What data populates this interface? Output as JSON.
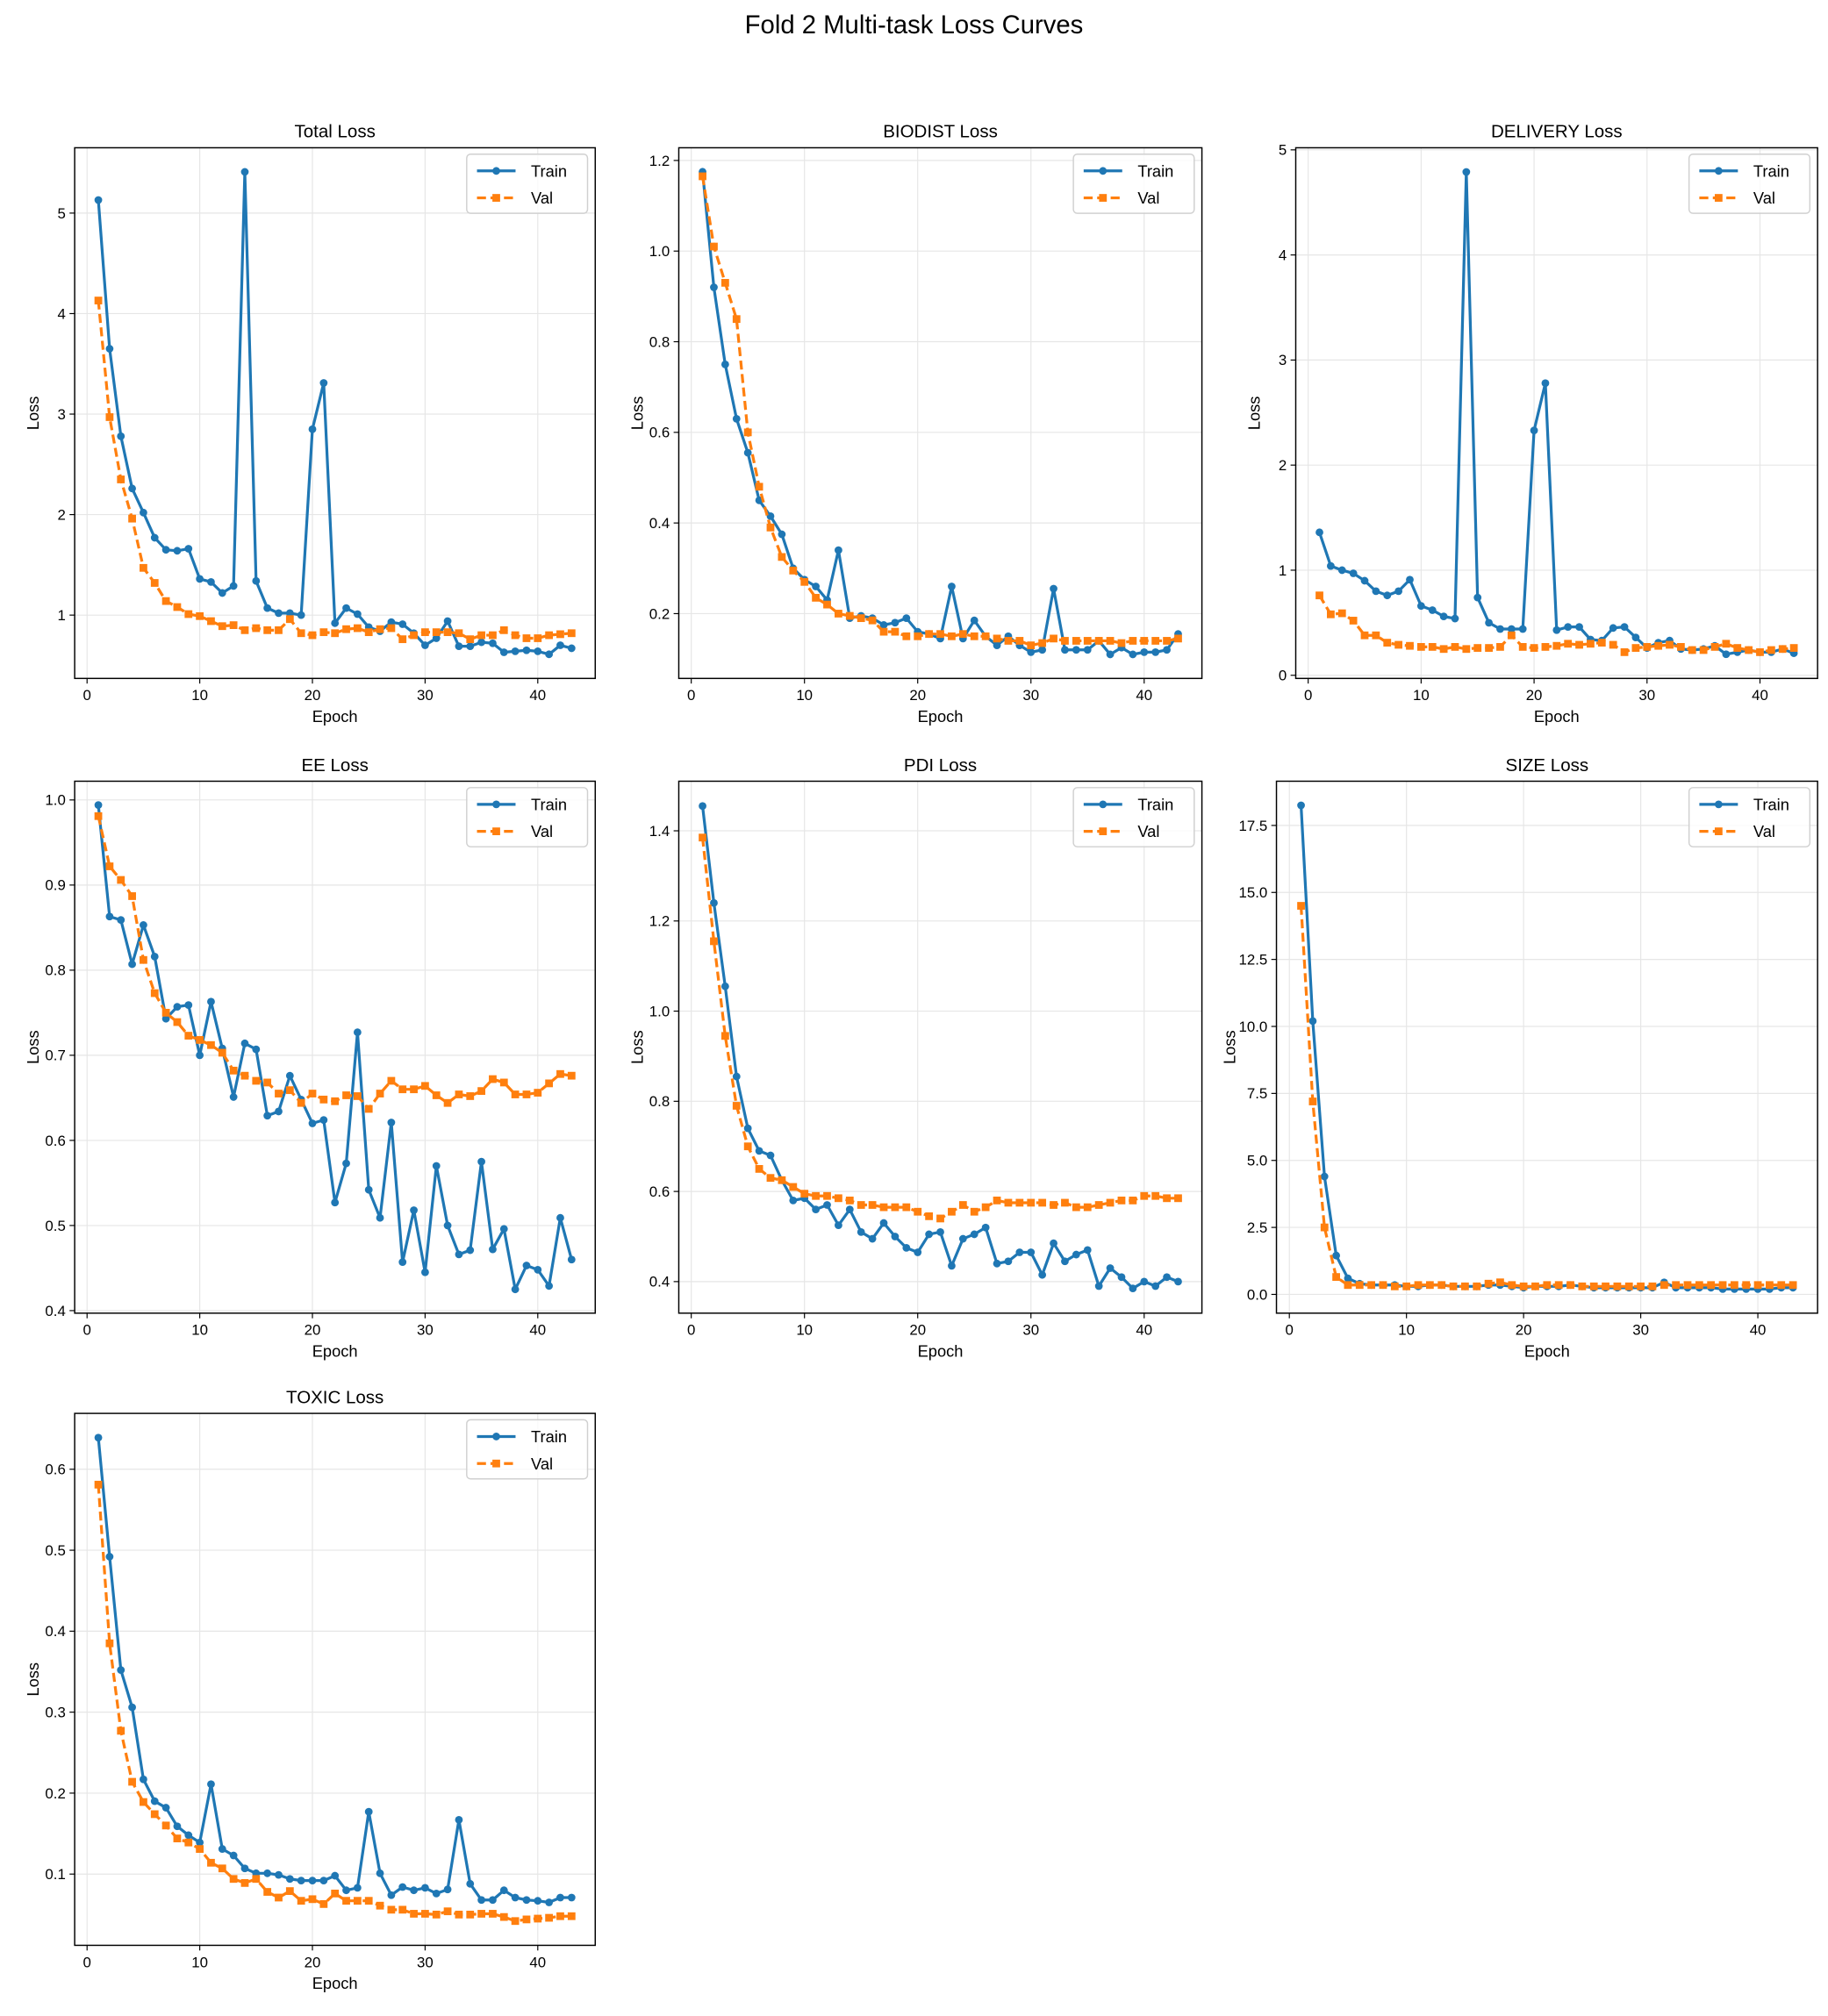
{
  "figure_title": "Fold 2 Multi-task Loss Curves",
  "colors": {
    "train": "#1f77b4",
    "val": "#ff7f0e"
  },
  "chart_data": [
    {
      "type": "line",
      "title": "Total Loss",
      "xlabel": "Epoch",
      "ylabel": "Loss",
      "xlim": [
        -1.1,
        45.1
      ],
      "ylim": [
        0.37,
        5.65
      ],
      "xticks": [
        0,
        10,
        20,
        30,
        40
      ],
      "yticks": [
        1,
        2,
        3,
        4,
        5
      ],
      "grid": true,
      "legend": "top-right",
      "series": [
        {
          "name": "Train",
          "values": [
            5.13,
            3.65,
            2.78,
            2.26,
            2.02,
            1.77,
            1.65,
            1.64,
            1.66,
            1.36,
            1.33,
            1.22,
            1.29,
            5.41,
            1.34,
            1.07,
            1.02,
            1.02,
            1.0,
            2.85,
            3.31,
            0.92,
            1.07,
            1.01,
            0.88,
            0.84,
            0.93,
            0.91,
            0.82,
            0.7,
            0.77,
            0.94,
            0.69,
            0.69,
            0.73,
            0.72,
            0.63,
            0.64,
            0.65,
            0.64,
            0.61,
            0.7,
            0.67
          ]
        },
        {
          "name": "Val",
          "values": [
            4.13,
            2.97,
            2.35,
            1.96,
            1.47,
            1.32,
            1.14,
            1.08,
            1.01,
            0.99,
            0.94,
            0.89,
            0.9,
            0.85,
            0.87,
            0.85,
            0.85,
            0.96,
            0.82,
            0.8,
            0.83,
            0.82,
            0.86,
            0.87,
            0.83,
            0.86,
            0.87,
            0.76,
            0.8,
            0.83,
            0.83,
            0.83,
            0.82,
            0.76,
            0.8,
            0.8,
            0.85,
            0.8,
            0.77,
            0.77,
            0.8,
            0.81,
            0.82
          ]
        }
      ]
    },
    {
      "type": "line",
      "title": "BIODIST Loss",
      "xlabel": "Epoch",
      "ylabel": "Loss",
      "xlim": [
        -1.1,
        45.1
      ],
      "ylim": [
        0.057,
        1.228
      ],
      "xticks": [
        0,
        10,
        20,
        30,
        40
      ],
      "yticks": [
        0.2,
        0.4,
        0.6,
        0.8,
        1.0,
        1.2
      ],
      "grid": true,
      "legend": "top-right",
      "series": [
        {
          "name": "Train",
          "values": [
            1.175,
            0.92,
            0.75,
            0.63,
            0.555,
            0.45,
            0.415,
            0.375,
            0.3,
            0.275,
            0.26,
            0.23,
            0.34,
            0.19,
            0.195,
            0.19,
            0.175,
            0.18,
            0.19,
            0.16,
            0.155,
            0.145,
            0.26,
            0.145,
            0.185,
            0.15,
            0.13,
            0.15,
            0.13,
            0.115,
            0.12,
            0.255,
            0.12,
            0.12,
            0.12,
            0.14,
            0.11,
            0.125,
            0.11,
            0.115,
            0.115,
            0.12,
            0.155
          ]
        },
        {
          "name": "Val",
          "values": [
            1.165,
            1.01,
            0.93,
            0.85,
            0.6,
            0.48,
            0.39,
            0.325,
            0.295,
            0.27,
            0.235,
            0.22,
            0.2,
            0.195,
            0.19,
            0.185,
            0.16,
            0.16,
            0.15,
            0.15,
            0.155,
            0.155,
            0.15,
            0.155,
            0.15,
            0.15,
            0.145,
            0.14,
            0.14,
            0.13,
            0.135,
            0.145,
            0.14,
            0.14,
            0.14,
            0.14,
            0.14,
            0.135,
            0.14,
            0.14,
            0.14,
            0.14,
            0.145
          ]
        }
      ]
    },
    {
      "type": "line",
      "title": "DELIVERY Loss",
      "xlabel": "Epoch",
      "ylabel": "Loss",
      "xlim": [
        -1.1,
        45.1
      ],
      "ylim": [
        -0.03,
        5.02
      ],
      "xticks": [
        0,
        10,
        20,
        30,
        40
      ],
      "yticks": [
        0,
        1,
        2,
        3,
        4,
        5
      ],
      "grid": true,
      "legend": "top-right",
      "series": [
        {
          "name": "Train",
          "values": [
            1.36,
            1.04,
            1.0,
            0.97,
            0.9,
            0.8,
            0.76,
            0.8,
            0.91,
            0.66,
            0.62,
            0.56,
            0.54,
            4.79,
            0.74,
            0.5,
            0.44,
            0.44,
            0.44,
            2.33,
            2.78,
            0.43,
            0.46,
            0.46,
            0.34,
            0.33,
            0.45,
            0.46,
            0.36,
            0.26,
            0.31,
            0.33,
            0.25,
            0.24,
            0.25,
            0.28,
            0.2,
            0.22,
            0.24,
            0.22,
            0.22,
            0.25,
            0.21
          ]
        },
        {
          "name": "Val",
          "values": [
            0.76,
            0.58,
            0.59,
            0.52,
            0.38,
            0.38,
            0.31,
            0.29,
            0.28,
            0.27,
            0.27,
            0.25,
            0.27,
            0.25,
            0.26,
            0.26,
            0.27,
            0.38,
            0.27,
            0.26,
            0.27,
            0.28,
            0.3,
            0.29,
            0.3,
            0.31,
            0.29,
            0.22,
            0.26,
            0.27,
            0.28,
            0.29,
            0.27,
            0.24,
            0.24,
            0.27,
            0.3,
            0.26,
            0.24,
            0.22,
            0.24,
            0.25,
            0.26
          ]
        }
      ]
    },
    {
      "type": "line",
      "title": "EE Loss",
      "xlabel": "Epoch",
      "ylabel": "Loss",
      "xlim": [
        -1.1,
        45.1
      ],
      "ylim": [
        0.397,
        1.022
      ],
      "xticks": [
        0,
        10,
        20,
        30,
        40
      ],
      "yticks": [
        0.4,
        0.5,
        0.6,
        0.7,
        0.8,
        0.9,
        1.0
      ],
      "grid": true,
      "legend": "top-right",
      "series": [
        {
          "name": "Train",
          "values": [
            0.994,
            0.863,
            0.859,
            0.807,
            0.853,
            0.816,
            0.743,
            0.757,
            0.759,
            0.7,
            0.763,
            0.708,
            0.651,
            0.714,
            0.707,
            0.629,
            0.634,
            0.676,
            0.648,
            0.62,
            0.624,
            0.527,
            0.573,
            0.727,
            0.542,
            0.509,
            0.621,
            0.457,
            0.518,
            0.445,
            0.57,
            0.5,
            0.466,
            0.471,
            0.575,
            0.472,
            0.496,
            0.425,
            0.453,
            0.448,
            0.429,
            0.509,
            0.46
          ]
        },
        {
          "name": "Val",
          "values": [
            0.981,
            0.922,
            0.906,
            0.887,
            0.812,
            0.773,
            0.75,
            0.739,
            0.723,
            0.718,
            0.712,
            0.703,
            0.682,
            0.676,
            0.67,
            0.668,
            0.655,
            0.659,
            0.644,
            0.655,
            0.648,
            0.646,
            0.653,
            0.652,
            0.637,
            0.655,
            0.67,
            0.66,
            0.66,
            0.664,
            0.653,
            0.644,
            0.654,
            0.652,
            0.658,
            0.672,
            0.668,
            0.654,
            0.654,
            0.656,
            0.667,
            0.678,
            0.676
          ]
        }
      ]
    },
    {
      "type": "line",
      "title": "PDI Loss",
      "xlabel": "Epoch",
      "ylabel": "Loss",
      "xlim": [
        -1.1,
        45.1
      ],
      "ylim": [
        0.33,
        1.51
      ],
      "xticks": [
        0,
        10,
        20,
        30,
        40
      ],
      "yticks": [
        0.4,
        0.6,
        0.8,
        1.0,
        1.2,
        1.4
      ],
      "grid": true,
      "legend": "top-right",
      "series": [
        {
          "name": "Train",
          "values": [
            1.455,
            1.24,
            1.055,
            0.855,
            0.74,
            0.69,
            0.68,
            0.625,
            0.58,
            0.585,
            0.56,
            0.57,
            0.525,
            0.56,
            0.51,
            0.495,
            0.53,
            0.5,
            0.475,
            0.465,
            0.505,
            0.51,
            0.435,
            0.495,
            0.505,
            0.52,
            0.44,
            0.445,
            0.465,
            0.465,
            0.415,
            0.485,
            0.445,
            0.46,
            0.47,
            0.39,
            0.43,
            0.41,
            0.385,
            0.4,
            0.39,
            0.41,
            0.4
          ]
        },
        {
          "name": "Val",
          "values": [
            1.385,
            1.155,
            0.945,
            0.79,
            0.7,
            0.65,
            0.63,
            0.625,
            0.61,
            0.595,
            0.59,
            0.59,
            0.585,
            0.58,
            0.57,
            0.57,
            0.565,
            0.565,
            0.565,
            0.555,
            0.545,
            0.54,
            0.555,
            0.57,
            0.555,
            0.565,
            0.58,
            0.575,
            0.575,
            0.575,
            0.575,
            0.57,
            0.575,
            0.565,
            0.565,
            0.57,
            0.575,
            0.58,
            0.58,
            0.59,
            0.59,
            0.585,
            0.585
          ]
        }
      ]
    },
    {
      "type": "line",
      "title": "SIZE Loss",
      "xlabel": "Epoch",
      "ylabel": "Loss",
      "xlim": [
        -1.1,
        45.1
      ],
      "ylim": [
        -0.7,
        19.15
      ],
      "xticks": [
        0,
        10,
        20,
        30,
        40
      ],
      "yticks": [
        0.0,
        2.5,
        5.0,
        7.5,
        10.0,
        12.5,
        15.0,
        17.5
      ],
      "grid": true,
      "legend": "top-right",
      "series": [
        {
          "name": "Train",
          "values": [
            18.25,
            10.2,
            4.4,
            1.45,
            0.6,
            0.4,
            0.35,
            0.35,
            0.35,
            0.3,
            0.3,
            0.35,
            0.35,
            0.3,
            0.3,
            0.3,
            0.35,
            0.35,
            0.3,
            0.25,
            0.3,
            0.3,
            0.3,
            0.35,
            0.3,
            0.25,
            0.25,
            0.25,
            0.25,
            0.25,
            0.25,
            0.45,
            0.25,
            0.25,
            0.25,
            0.25,
            0.2,
            0.2,
            0.2,
            0.2,
            0.2,
            0.25,
            0.25
          ]
        },
        {
          "name": "Val",
          "values": [
            14.5,
            7.2,
            2.5,
            0.65,
            0.35,
            0.35,
            0.35,
            0.35,
            0.3,
            0.3,
            0.35,
            0.35,
            0.35,
            0.3,
            0.3,
            0.3,
            0.4,
            0.45,
            0.35,
            0.3,
            0.3,
            0.35,
            0.35,
            0.35,
            0.3,
            0.3,
            0.3,
            0.3,
            0.3,
            0.3,
            0.3,
            0.35,
            0.35,
            0.35,
            0.35,
            0.35,
            0.35,
            0.35,
            0.35,
            0.35,
            0.35,
            0.35,
            0.35
          ]
        }
      ]
    },
    {
      "type": "line",
      "title": "TOXIC Loss",
      "xlabel": "Epoch",
      "ylabel": "Loss",
      "xlim": [
        -1.1,
        45.1
      ],
      "ylim": [
        0.012,
        0.669
      ],
      "xticks": [
        0,
        10,
        20,
        30,
        40
      ],
      "yticks": [
        0.1,
        0.2,
        0.3,
        0.4,
        0.5,
        0.6
      ],
      "grid": true,
      "legend": "top-right",
      "series": [
        {
          "name": "Train",
          "values": [
            0.639,
            0.492,
            0.352,
            0.306,
            0.217,
            0.19,
            0.182,
            0.159,
            0.148,
            0.139,
            0.211,
            0.131,
            0.123,
            0.107,
            0.101,
            0.101,
            0.099,
            0.094,
            0.092,
            0.092,
            0.092,
            0.098,
            0.08,
            0.083,
            0.177,
            0.101,
            0.074,
            0.084,
            0.08,
            0.083,
            0.076,
            0.081,
            0.167,
            0.088,
            0.068,
            0.068,
            0.08,
            0.071,
            0.068,
            0.067,
            0.065,
            0.071,
            0.071
          ]
        },
        {
          "name": "Val",
          "values": [
            0.581,
            0.385,
            0.277,
            0.214,
            0.189,
            0.174,
            0.16,
            0.144,
            0.139,
            0.131,
            0.114,
            0.107,
            0.094,
            0.089,
            0.094,
            0.078,
            0.071,
            0.079,
            0.067,
            0.069,
            0.063,
            0.076,
            0.067,
            0.067,
            0.067,
            0.061,
            0.056,
            0.056,
            0.051,
            0.051,
            0.05,
            0.054,
            0.05,
            0.05,
            0.051,
            0.051,
            0.047,
            0.042,
            0.044,
            0.045,
            0.046,
            0.048,
            0.048
          ]
        }
      ]
    }
  ]
}
